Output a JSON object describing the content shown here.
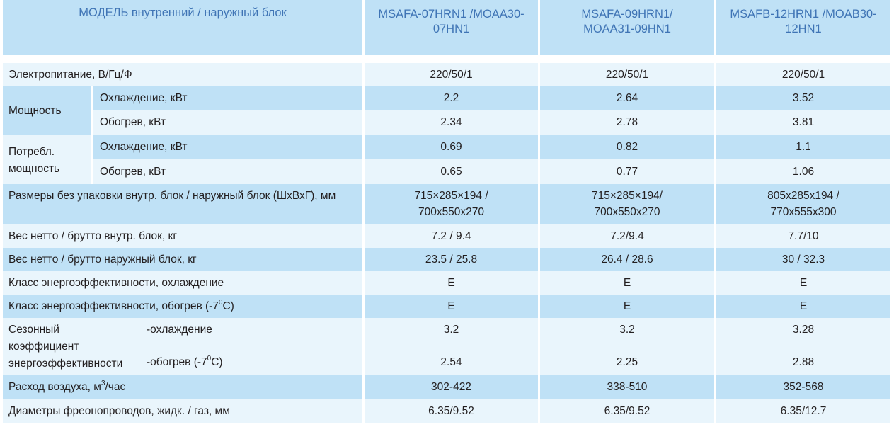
{
  "header": {
    "model_label": "МОДЕЛЬ внутренний / наружный блок",
    "models": [
      [
        "MSAFA-07HRN1 /MOAA30-",
        "07HN1"
      ],
      [
        "MSAFA-09HRN1/",
        "MOAA31-09HN1"
      ],
      [
        "MSAFB-12HRN1 /MOAB30-",
        "12HN1"
      ]
    ]
  },
  "rows": {
    "power_supply": {
      "label": "Электропитание, В/Гц/Ф",
      "values": [
        "220/50/1",
        "220/50/1",
        "220/50/1"
      ]
    },
    "capacity": {
      "group": "Мощность",
      "cooling": {
        "label": "Охлаждение, кВт",
        "values": [
          "2.2",
          "2.64",
          "3.52"
        ]
      },
      "heating": {
        "label": "Обогрев, кВт",
        "values": [
          "2.34",
          "2.78",
          "3.81"
        ]
      }
    },
    "consumption": {
      "group": [
        "Потребл.",
        "мощность"
      ],
      "cooling": {
        "label": "Охлаждение, кВт",
        "values": [
          "0.69",
          "0.82",
          "1.1"
        ]
      },
      "heating": {
        "label": "Обогрев, кВт",
        "values": [
          "0.65",
          "0.77",
          "1.06"
        ]
      }
    },
    "dimensions": {
      "label": "Размеры без упаковки внутр. блок / наружный блок  (ШхВхГ), мм",
      "values": [
        [
          "715×285×194 /",
          "700x550x270"
        ],
        [
          "715×285×194/",
          "700x550x270"
        ],
        [
          "805x285x194 /",
          "770x555x300"
        ]
      ]
    },
    "weight_indoor": {
      "label": "Вес нетто / брутто внутр. блок, кг",
      "values": [
        "7.2 / 9.4",
        "7.2/9.4",
        "7.7/10"
      ]
    },
    "weight_outdoor": {
      "label": "Вес нетто / брутто наружный блок, кг",
      "values": [
        "23.5 / 25.8",
        "26.4 / 28.6",
        "30 / 32.3"
      ]
    },
    "energy_class_cooling": {
      "label": "Класс энергоэффективности, охлаждение",
      "values": [
        "E",
        "E",
        "E"
      ]
    },
    "energy_class_heating": {
      "label_main": "Класс энергоэффективности, обогрев  (-7",
      "label_sup": "0",
      "label_end": "C)",
      "values": [
        "E",
        "E",
        "E"
      ]
    },
    "seasonal": {
      "group": [
        "Сезонный",
        "коэффициент",
        "энергоэффективности"
      ],
      "cooling": {
        "label": "-охлаждение",
        "values": [
          "3.2",
          "3.2",
          "3.28"
        ]
      },
      "heating": {
        "label_main": "-обогрев  (-7",
        "label_sup": "0",
        "label_end": "C)",
        "values": [
          "2.54",
          "2.25",
          "2.88"
        ]
      }
    },
    "airflow": {
      "label_main": "Расход воздуха, м",
      "label_sup": "3",
      "label_end": "/час",
      "values": [
        "302-422",
        "338-510",
        "352-568"
      ]
    },
    "pipes": {
      "label": "Диаметры фреонопроводов, жидк. / газ, мм",
      "values": [
        "6.35/9.52",
        "6.35/9.52",
        "6.35/12.7"
      ]
    }
  }
}
